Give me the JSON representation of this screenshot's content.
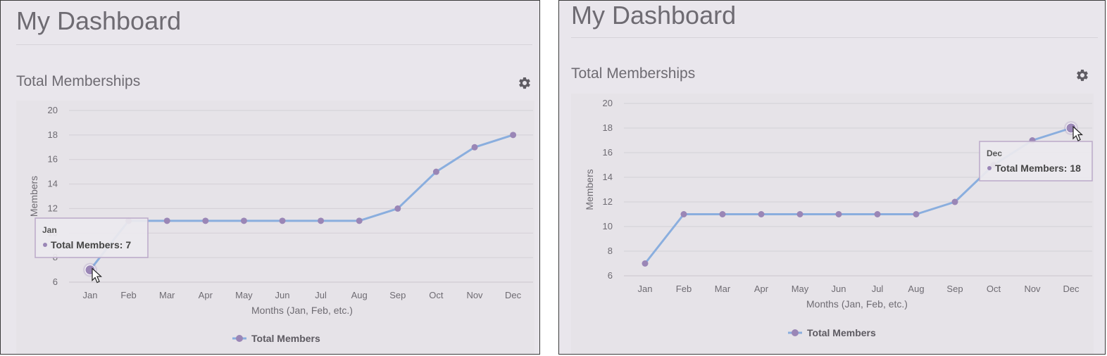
{
  "panels": [
    {
      "title": "My Dashboard",
      "section_title": "Total Memberships",
      "gear_icon": "gear-icon",
      "tooltip": {
        "index": 0,
        "month": "Jan",
        "value_text": "Total Members: 7"
      }
    },
    {
      "title": "My Dashboard",
      "section_title": "Total Memberships",
      "gear_icon": "gear-icon",
      "tooltip": {
        "index": 11,
        "month": "Dec",
        "value_text": "Total Members: 18"
      }
    }
  ],
  "chart_data": {
    "type": "line",
    "categories": [
      "Jan",
      "Feb",
      "Mar",
      "Apr",
      "May",
      "Jun",
      "Jul",
      "Aug",
      "Sep",
      "Oct",
      "Nov",
      "Dec"
    ],
    "series": [
      {
        "name": "Total Members",
        "values": [
          7,
          11,
          11,
          11,
          11,
          11,
          11,
          11,
          12,
          15,
          17,
          18
        ]
      }
    ],
    "xlabel": "Months (Jan, Feb, etc.)",
    "ylabel": "Members",
    "ylim": [
      6,
      20
    ],
    "yticks": [
      6,
      8,
      10,
      12,
      14,
      16,
      18,
      20
    ],
    "grid": true,
    "legend_position": "bottom",
    "colors": {
      "line": "#8aaede",
      "marker": "#9a86b6",
      "grid": "#d3d0d6"
    }
  }
}
